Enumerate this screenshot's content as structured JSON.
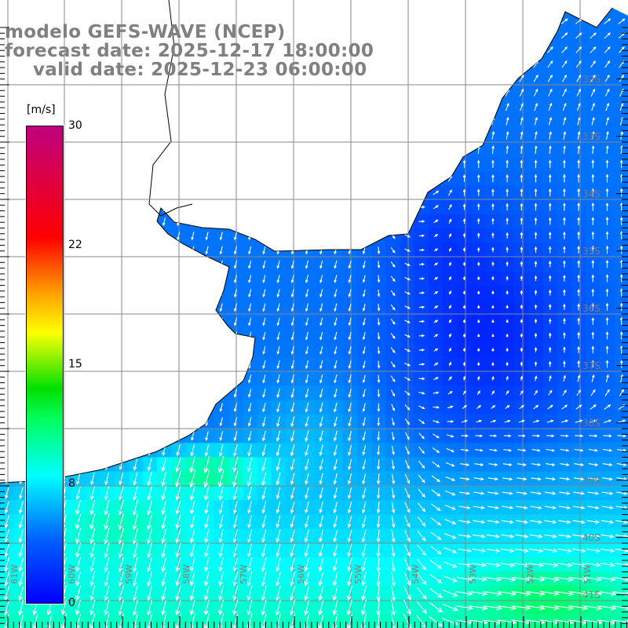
{
  "title": {
    "line1": "modelo GEFS-WAVE (NCEP)",
    "line2": "forecast date: 2025-12-17 18:00:00",
    "line3": "valid date: 2025-12-23 06:00:00"
  },
  "colorbar": {
    "unit": "[m/s]",
    "ticks": [
      "30",
      "22",
      "15",
      "8",
      "0"
    ],
    "range": [
      0,
      30
    ],
    "stops": [
      {
        "v": 0,
        "c": "#0000ff"
      },
      {
        "v": 4,
        "c": "#0060ff"
      },
      {
        "v": 8,
        "c": "#00ffff"
      },
      {
        "v": 11.5,
        "c": "#00ff60"
      },
      {
        "v": 13.5,
        "c": "#00e000"
      },
      {
        "v": 17,
        "c": "#ffff00"
      },
      {
        "v": 19.5,
        "c": "#ffa000"
      },
      {
        "v": 23,
        "c": "#ff0000"
      },
      {
        "v": 30,
        "c": "#c0007f"
      }
    ]
  },
  "lat_labels": [
    "32S",
    "33S",
    "34S",
    "35S",
    "36S",
    "37S",
    "38S",
    "39S",
    "40S",
    "41S"
  ],
  "lon_labels": [
    "61W",
    "60W",
    "59W",
    "58W",
    "57W",
    "56W",
    "55W",
    "54W",
    "53W",
    "52W",
    "51W"
  ],
  "colors": {
    "land": "#ffffff",
    "grid": "#888888",
    "coast": "#000000",
    "arrow": "#ffffff"
  }
}
